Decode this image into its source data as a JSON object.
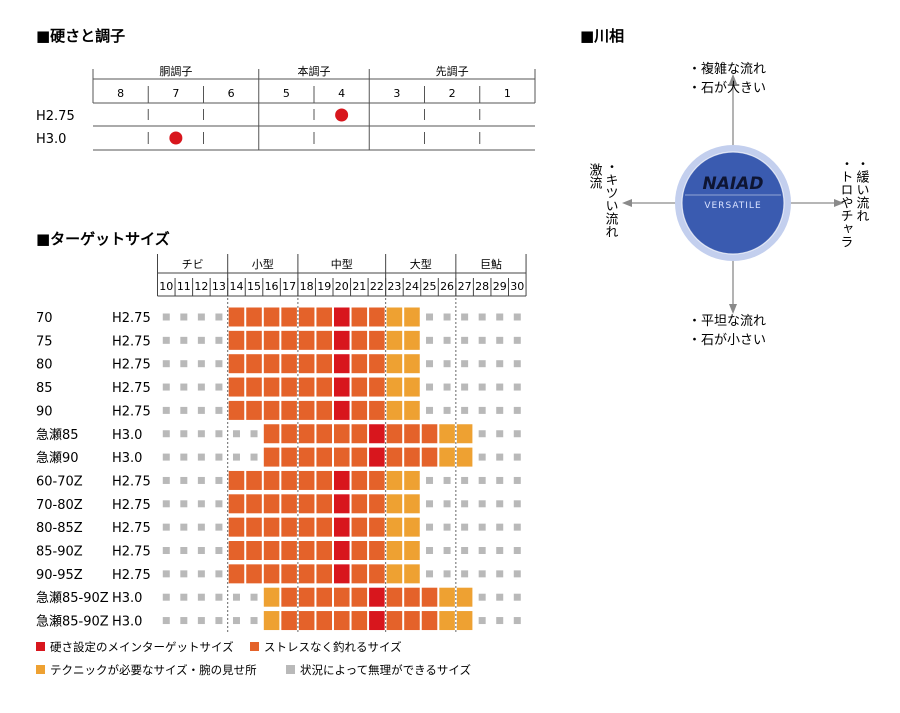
{
  "hardness": {
    "title": "■硬さと調子",
    "groups": [
      "胴調子",
      "本調子",
      "先調子"
    ],
    "columns": [
      "8",
      "7",
      "6",
      "5",
      "4",
      "3",
      "2",
      "1"
    ],
    "rows": [
      {
        "label": "H2.75",
        "position": 4
      },
      {
        "label": "H3.0",
        "position": 7
      }
    ],
    "marker_color": "#d8161d"
  },
  "river": {
    "title": "■川相",
    "center_title": "NAIAD",
    "center_subtitle": "VERSATILE",
    "top": [
      "・複雑な流れ",
      "・石が大きい"
    ],
    "bottom": [
      "・平坦な流れ",
      "・石が小さい"
    ],
    "left": [
      "・キツい流れ",
      "激流"
    ],
    "right": [
      "・緩い流れ",
      "・トロやチャラ"
    ]
  },
  "chart_data": {
    "type": "heatmap",
    "title": "■ターゲットサイズ",
    "size_groups": [
      {
        "label": "チビ",
        "from": 10,
        "to": 13
      },
      {
        "label": "小型",
        "from": 14,
        "to": 17
      },
      {
        "label": "中型",
        "from": 18,
        "to": 22
      },
      {
        "label": "大型",
        "from": 23,
        "to": 26
      },
      {
        "label": "巨鮎",
        "from": 27,
        "to": 30
      }
    ],
    "sizes": [
      "10",
      "11",
      "12",
      "13",
      "14",
      "15",
      "16",
      "17",
      "18",
      "19",
      "20",
      "21",
      "22",
      "23",
      "24",
      "25",
      "26",
      "27",
      "28",
      "29",
      "30"
    ],
    "categories": {
      "3": {
        "name": "硬さ設定のメインターゲットサイズ",
        "color": "#d8161d"
      },
      "2": {
        "name": "ストレスなく釣れるサイズ",
        "color": "#e4622a"
      },
      "1": {
        "name": "テクニックが必要なサイズ・腕の見せ所",
        "color": "#eea132"
      },
      "0": {
        "name": "状況によって無理ができるサイズ",
        "color": "#b9b9b9"
      }
    },
    "legend_order": [
      "3",
      "2",
      "1",
      "0"
    ],
    "rows": [
      {
        "model": "70",
        "hardness": "H2.75",
        "cells": [
          0,
          0,
          0,
          0,
          2,
          2,
          2,
          2,
          2,
          2,
          3,
          2,
          2,
          1,
          1,
          0,
          0,
          0,
          0,
          0,
          0
        ]
      },
      {
        "model": "75",
        "hardness": "H2.75",
        "cells": [
          0,
          0,
          0,
          0,
          2,
          2,
          2,
          2,
          2,
          2,
          3,
          2,
          2,
          1,
          1,
          0,
          0,
          0,
          0,
          0,
          0
        ]
      },
      {
        "model": "80",
        "hardness": "H2.75",
        "cells": [
          0,
          0,
          0,
          0,
          2,
          2,
          2,
          2,
          2,
          2,
          3,
          2,
          2,
          1,
          1,
          0,
          0,
          0,
          0,
          0,
          0
        ]
      },
      {
        "model": "85",
        "hardness": "H2.75",
        "cells": [
          0,
          0,
          0,
          0,
          2,
          2,
          2,
          2,
          2,
          2,
          3,
          2,
          2,
          1,
          1,
          0,
          0,
          0,
          0,
          0,
          0
        ]
      },
      {
        "model": "90",
        "hardness": "H2.75",
        "cells": [
          0,
          0,
          0,
          0,
          2,
          2,
          2,
          2,
          2,
          2,
          3,
          2,
          2,
          1,
          1,
          0,
          0,
          0,
          0,
          0,
          0
        ]
      },
      {
        "model": "急瀬85",
        "hardness": "H3.0",
        "cells": [
          0,
          0,
          0,
          0,
          0,
          0,
          2,
          2,
          2,
          2,
          2,
          2,
          3,
          2,
          2,
          2,
          1,
          1,
          0,
          0,
          0
        ]
      },
      {
        "model": "急瀬90",
        "hardness": "H3.0",
        "cells": [
          0,
          0,
          0,
          0,
          0,
          0,
          2,
          2,
          2,
          2,
          2,
          2,
          3,
          2,
          2,
          2,
          1,
          1,
          0,
          0,
          0
        ]
      },
      {
        "model": "60-70Z",
        "hardness": "H2.75",
        "cells": [
          0,
          0,
          0,
          0,
          2,
          2,
          2,
          2,
          2,
          2,
          3,
          2,
          2,
          1,
          1,
          0,
          0,
          0,
          0,
          0,
          0
        ]
      },
      {
        "model": "70-80Z",
        "hardness": "H2.75",
        "cells": [
          0,
          0,
          0,
          0,
          2,
          2,
          2,
          2,
          2,
          2,
          3,
          2,
          2,
          1,
          1,
          0,
          0,
          0,
          0,
          0,
          0
        ]
      },
      {
        "model": "80-85Z",
        "hardness": "H2.75",
        "cells": [
          0,
          0,
          0,
          0,
          2,
          2,
          2,
          2,
          2,
          2,
          3,
          2,
          2,
          1,
          1,
          0,
          0,
          0,
          0,
          0,
          0
        ]
      },
      {
        "model": "85-90Z",
        "hardness": "H2.75",
        "cells": [
          0,
          0,
          0,
          0,
          2,
          2,
          2,
          2,
          2,
          2,
          3,
          2,
          2,
          1,
          1,
          0,
          0,
          0,
          0,
          0,
          0
        ]
      },
      {
        "model": "90-95Z",
        "hardness": "H2.75",
        "cells": [
          0,
          0,
          0,
          0,
          2,
          2,
          2,
          2,
          2,
          2,
          3,
          2,
          2,
          1,
          1,
          0,
          0,
          0,
          0,
          0,
          0
        ]
      },
      {
        "model": "急瀬85-90Z",
        "hardness": "H3.0",
        "cells": [
          0,
          0,
          0,
          0,
          0,
          0,
          1,
          2,
          2,
          2,
          2,
          2,
          3,
          2,
          2,
          2,
          1,
          1,
          0,
          0,
          0
        ]
      },
      {
        "model": "急瀬85-90Z",
        "hardness": "H3.0",
        "cells": [
          0,
          0,
          0,
          0,
          0,
          0,
          1,
          2,
          2,
          2,
          2,
          2,
          3,
          2,
          2,
          2,
          1,
          1,
          0,
          0,
          0
        ]
      }
    ]
  }
}
